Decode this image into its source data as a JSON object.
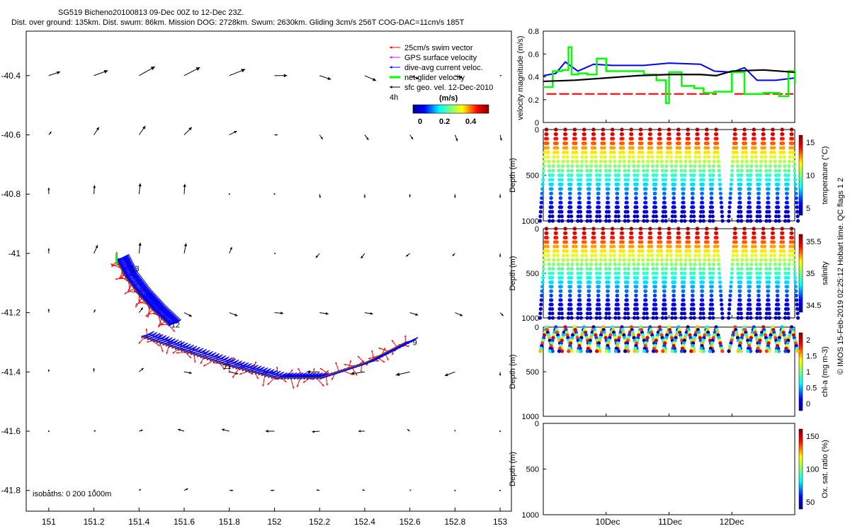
{
  "header": {
    "line1": "SG519 Bicheno20100813 09-Dec 00Z to 12-Dec 23Z.",
    "line2": "Dist. over ground: 135km. Dist. swum: 86km. Mission DOG: 2728km. Swum: 2630km. Gliding 3cm/s 256T COG-DAC=11cm/s 185T"
  },
  "map": {
    "legend": [
      {
        "label": "25cm/s swim vector",
        "color": "#ff0000"
      },
      {
        "label": "GPS surface velocity",
        "color": "#ff00ff"
      },
      {
        "label": "dive-avg current veloc.",
        "color": "#0000ff"
      },
      {
        "label": "net glider velocity",
        "color": "#00ff00"
      },
      {
        "label": "sfc geo. vel. 12-Dec-2010",
        "color": "#000000"
      }
    ],
    "legend_note": "4h",
    "colorbar_unit": "(m/s)",
    "colorbar_ticks": [
      "0",
      "0.2",
      "0.4"
    ],
    "isobath_label": "isobaths: 0    200   1000m",
    "waypoints": [
      {
        "label": "13",
        "lon": 151.35,
        "lat": -41.05
      },
      {
        "label": "12",
        "lon": 151.53,
        "lat": -41.24
      },
      {
        "label": "11",
        "lon": 151.76,
        "lat": -41.38
      },
      {
        "label": "9",
        "lon": 152.6,
        "lat": -41.3
      }
    ]
  },
  "velocity_panel": {
    "ylabel": "velocity magnitude (m/s)",
    "yticks": [
      "0",
      "0.2",
      "0.4",
      "0.6",
      "0.8"
    ]
  },
  "depth_panels": [
    {
      "ylabel": "Depth (m)",
      "cblabel": "temperature (°C)",
      "cbticks": [
        "5",
        "10",
        "15"
      ],
      "yticks": [
        "0",
        "500",
        "1000"
      ]
    },
    {
      "ylabel": "Depth (m)",
      "cblabel": "salinity",
      "cbticks": [
        "34.5",
        "35",
        "35.5"
      ],
      "yticks": [
        "0",
        "500",
        "1000"
      ]
    },
    {
      "ylabel": "Depth (m)",
      "cblabel": "chl-a (mg m-3)",
      "cbticks": [
        "0",
        "0.5",
        "1",
        "1.5",
        "2"
      ],
      "yticks": [
        "0",
        "500",
        "1000"
      ]
    },
    {
      "ylabel": "Depth (m)",
      "cblabel": "Ox. sat. ratio (%)",
      "cbticks": [
        "50",
        "100",
        "150"
      ],
      "yticks": [
        "0",
        "500",
        "1000"
      ]
    }
  ],
  "time_axis": {
    "ticks": [
      "10Dec",
      "11Dec",
      "12Dec"
    ]
  },
  "side_note": "© IMOS 15-Feb-2019 02:25:12 Hobart time. QC flags 1  2",
  "colors": {
    "swim": "#ff0000",
    "dac": "#0000ff",
    "net": "#00ff00",
    "geo": "#000000",
    "track": "#8b4513"
  },
  "chart_data": [
    {
      "type": "scatter",
      "title": "SG519 Bicheno20100813 09-Dec 00Z to 12-Dec 23Z.",
      "xlabel": "",
      "ylabel": "",
      "xlim": [
        150.9,
        153.05
      ],
      "ylim": [
        -41.87,
        -40.25
      ],
      "xticks": [
        151,
        151.2,
        151.4,
        151.6,
        151.8,
        152,
        152.2,
        152.4,
        152.6,
        152.8,
        153
      ],
      "yticks": [
        -40.4,
        -40.6,
        -40.8,
        -41,
        -41.2,
        -41.4,
        -41.6,
        -41.8
      ],
      "tracks": [
        {
          "name": "segment-a",
          "points": [
            [
              151.3,
              -41.02
            ],
            [
              151.34,
              -41.08
            ],
            [
              151.4,
              -41.14
            ],
            [
              151.46,
              -41.19
            ],
            [
              151.53,
              -41.24
            ]
          ]
        },
        {
          "name": "segment-b",
          "points": [
            [
              151.41,
              -41.28
            ],
            [
              151.6,
              -41.33
            ],
            [
              151.8,
              -41.38
            ],
            [
              152.0,
              -41.42
            ],
            [
              152.2,
              -41.42
            ],
            [
              152.4,
              -41.37
            ],
            [
              152.58,
              -41.3
            ]
          ]
        }
      ],
      "geo_vectors": {
        "lons": [
          151,
          151.2,
          151.4,
          151.6,
          151.8,
          152,
          152.2,
          152.4,
          152.6,
          152.8,
          153
        ],
        "lats": [
          -40.4,
          -40.6,
          -40.8,
          -41,
          -41.2,
          -41.4,
          -41.6,
          -41.8
        ],
        "u": [
          [
            0.18,
            0.22,
            0.25,
            0.25,
            0.25,
            0.2,
            0.18,
            0.18,
            0.14,
            0.12,
            0.02
          ],
          [
            0.04,
            0.08,
            0.1,
            0.12,
            0.12,
            0.05,
            0.05,
            0.06,
            0.05,
            0.04,
            0.02
          ],
          [
            0.0,
            0.01,
            0.02,
            0.01,
            0.0,
            0.0,
            0.01,
            0.0,
            0.0,
            0.0,
            0.0
          ],
          [
            0.0,
            0.06,
            0.02,
            0.03,
            0.04,
            0.02,
            -0.06,
            -0.06,
            -0.06,
            -0.04,
            0.0
          ],
          [
            0.0,
            0.02,
            0.06,
            0.12,
            0.13,
            0.14,
            0.14,
            0.13,
            0.13,
            0.12,
            0.05
          ],
          [
            0.0,
            0.0,
            0.07,
            0.12,
            0.14,
            -0.16,
            -0.2,
            -0.22,
            -0.22,
            -0.16,
            0.0
          ],
          [
            0.01,
            0.03,
            0.06,
            -0.1,
            -0.12,
            -0.14,
            -0.12,
            -0.1,
            -0.04,
            0.0,
            0.0
          ],
          [
            0.01,
            0.02,
            0.03,
            0.06,
            0.06,
            -0.06,
            -0.05,
            -0.04,
            0.02,
            0.0,
            0.0
          ]
        ],
        "v": [
          [
            0.06,
            0.08,
            0.14,
            0.13,
            0.1,
            0.0,
            -0.06,
            -0.08,
            -0.05,
            -0.04,
            0.0
          ],
          [
            0.05,
            0.12,
            0.14,
            0.12,
            0.06,
            0.0,
            -0.07,
            -0.08,
            -0.07,
            -0.1,
            -0.09
          ],
          [
            0.1,
            0.14,
            0.17,
            0.16,
            0.01,
            0.0,
            -0.06,
            -0.06,
            -0.05,
            -0.06,
            -0.06
          ],
          [
            0.08,
            0.13,
            0.17,
            0.16,
            0.1,
            0.0,
            -0.07,
            -0.08,
            -0.05,
            -0.04,
            -0.06
          ],
          [
            0.06,
            0.05,
            0.08,
            -0.06,
            -0.05,
            -0.01,
            -0.02,
            -0.02,
            -0.04,
            -0.05,
            -0.05
          ],
          [
            0.04,
            0.06,
            0.06,
            -0.02,
            -0.03,
            0.0,
            0.0,
            -0.03,
            -0.05,
            -0.06,
            -0.06
          ],
          [
            0.0,
            0.01,
            0.02,
            0.03,
            0.03,
            0.0,
            -0.01,
            0.0,
            0.03,
            0.02,
            0.0
          ],
          [
            0.01,
            0.01,
            0.02,
            0.03,
            0.0,
            0.0,
            0.01,
            0.01,
            0.01,
            0.0,
            0.0
          ]
        ]
      }
    },
    {
      "type": "line",
      "ylabel": "velocity magnitude (m/s)",
      "xlim": [
        9.0,
        13.0
      ],
      "ylim": [
        0,
        0.8
      ],
      "series": [
        {
          "name": "25cm/s swim vector",
          "x": [
            9.05,
            11.76,
            12.04,
            12.98
          ],
          "y": [
            0.25,
            0.25,
            0.25,
            0.25
          ]
        },
        {
          "name": "dive-avg current veloc.",
          "x": [
            9.0,
            9.2,
            9.35,
            9.55,
            9.8,
            10.1,
            10.6,
            11.0,
            11.5,
            11.72,
            12.0,
            12.2,
            12.4,
            12.7,
            13.0
          ],
          "y": [
            0.41,
            0.43,
            0.53,
            0.45,
            0.51,
            0.5,
            0.5,
            0.52,
            0.51,
            0.45,
            0.44,
            0.48,
            0.37,
            0.37,
            0.39
          ]
        },
        {
          "name": "net glider velocity",
          "x": [
            9.0,
            9.15,
            9.3,
            9.4,
            9.45,
            9.55,
            9.7,
            9.85,
            10.0,
            10.3,
            10.6,
            10.8,
            10.95,
            11.0,
            11.2,
            11.4,
            11.55,
            11.72,
            12.0,
            12.2,
            12.5,
            12.75,
            12.9,
            13.0
          ],
          "y": [
            0.31,
            0.45,
            0.46,
            0.66,
            0.42,
            0.43,
            0.42,
            0.56,
            0.45,
            0.45,
            0.42,
            0.37,
            0.17,
            0.44,
            0.32,
            0.3,
            0.26,
            0.27,
            0.44,
            0.25,
            0.26,
            0.23,
            0.45,
            0.34
          ]
        },
        {
          "name": "sfc geo. vel. 12-Dec-2010",
          "x": [
            9.0,
            9.5,
            10.0,
            10.5,
            11.0,
            11.5,
            11.75,
            12.0,
            12.5,
            13.0
          ],
          "y": [
            0.36,
            0.37,
            0.39,
            0.41,
            0.42,
            0.42,
            0.41,
            0.45,
            0.46,
            0.44
          ]
        }
      ]
    },
    {
      "type": "scatter",
      "name": "temperature (°C)",
      "ylim": [
        1000,
        0
      ],
      "dive_times": [
        9.05,
        9.2,
        9.35,
        9.5,
        9.65,
        9.8,
        9.95,
        10.1,
        10.25,
        10.4,
        10.55,
        10.7,
        10.85,
        11.0,
        11.15,
        11.3,
        11.45,
        11.6,
        11.75,
        12.05,
        12.2,
        12.35,
        12.5,
        12.65,
        12.8,
        12.95
      ],
      "max_depth": 1000,
      "surface_value": 17.5,
      "deep_value": 5
    },
    {
      "type": "scatter",
      "name": "salinity",
      "ylim": [
        1000,
        0
      ],
      "max_depth": 1000,
      "surface_value": 35.6,
      "deep_value": 34.4
    },
    {
      "type": "scatter",
      "name": "chl-a (mg m-3)",
      "ylim": [
        1000,
        0
      ],
      "max_depth": 280,
      "surface_value": 1.6,
      "deep_value": 0.1
    },
    {
      "type": "scatter",
      "name": "Ox. sat. ratio (%)",
      "ylim": [
        1000,
        0
      ],
      "values": []
    }
  ]
}
